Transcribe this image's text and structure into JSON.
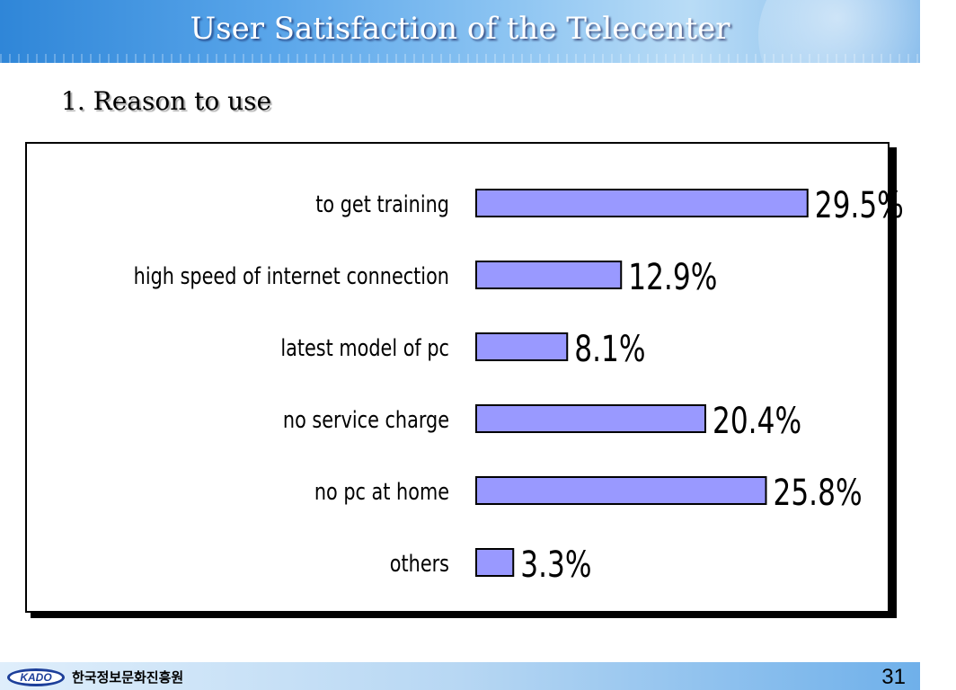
{
  "header": {
    "title": "User Satisfaction of the Telecenter"
  },
  "section": {
    "subtitle": "1. Reason to use"
  },
  "footer": {
    "logo_text": "KADO",
    "org_name": "한국정보문화진흥원",
    "page_number": "31"
  },
  "colors": {
    "bar_fill": "#9999ff",
    "bar_stroke": "#000000"
  },
  "chart_data": {
    "type": "bar",
    "orientation": "horizontal",
    "categories": [
      "to get training",
      "high speed of internet connection",
      "latest model of pc",
      "no service charge",
      "no pc at home",
      "others"
    ],
    "values": [
      29.5,
      12.9,
      8.1,
      20.4,
      25.8,
      3.3
    ],
    "value_labels": [
      "29.5%",
      "12.9%",
      "8.1%",
      "20.4%",
      "25.8%",
      "3.3%"
    ],
    "xlim": [
      0,
      30
    ],
    "grid": false,
    "legend": "none"
  }
}
